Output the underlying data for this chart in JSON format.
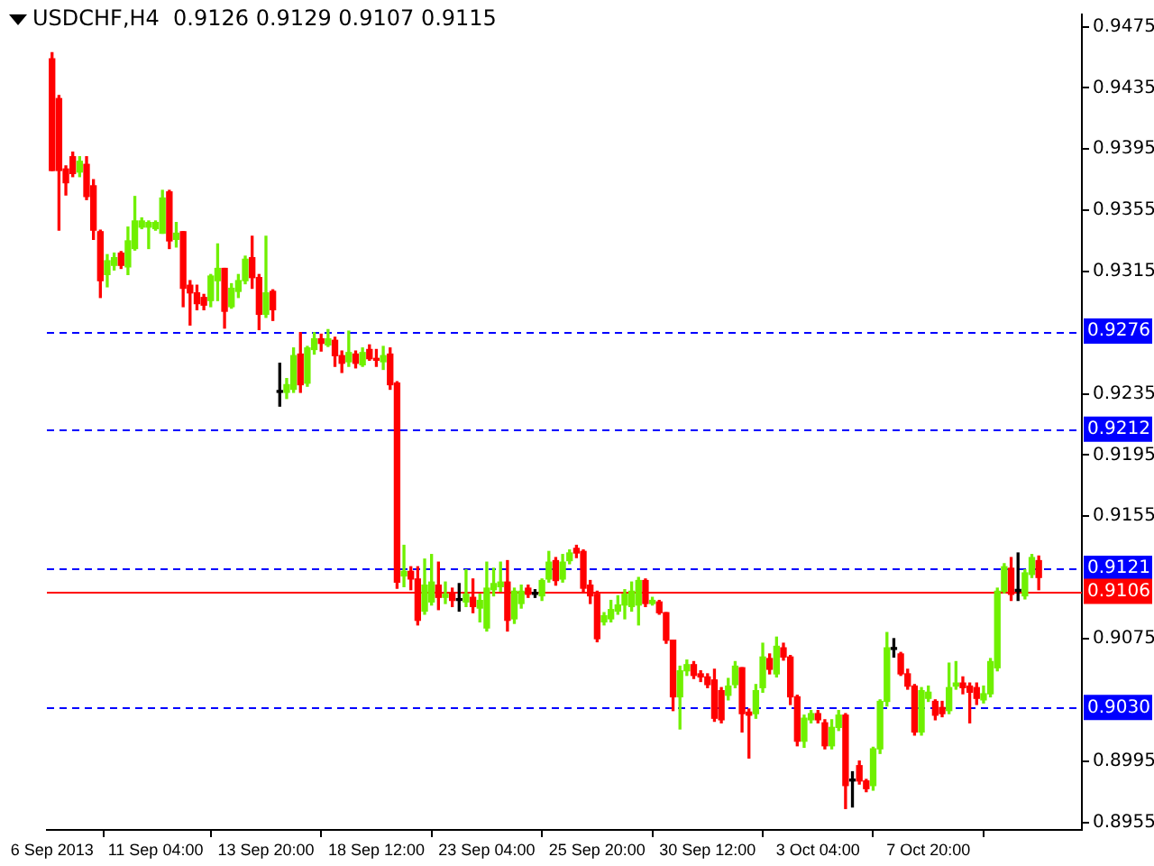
{
  "chart_data": {
    "type": "candlestick",
    "title": "USDCHF,H4  0.9126 0.9129 0.9107 0.9115",
    "categories": [
      "6 Sep 2013",
      null,
      null,
      null,
      null,
      null,
      null,
      null,
      null,
      null,
      null,
      null,
      null,
      null,
      null,
      "11 Sep 04:00",
      null,
      null,
      null,
      null,
      null,
      null,
      null,
      null,
      null,
      null,
      null,
      null,
      null,
      null,
      null,
      "13 Sep 20:00",
      null,
      null,
      null,
      null,
      null,
      null,
      null,
      null,
      null,
      null,
      null,
      null,
      null,
      null,
      null,
      "18 Sep 12:00",
      null,
      null,
      null,
      null,
      null,
      null,
      null,
      null,
      null,
      null,
      null,
      null,
      null,
      null,
      null,
      "23 Sep 04:00",
      null,
      null,
      null,
      null,
      null,
      null,
      null,
      null,
      null,
      null,
      null,
      null,
      null,
      null,
      null,
      "25 Sep 20:00",
      null,
      null,
      null,
      null,
      null,
      null,
      null,
      null,
      null,
      null,
      null,
      null,
      null,
      null,
      null,
      "30 Sep 12:00",
      null,
      null,
      null,
      null,
      null,
      null,
      null,
      null,
      null,
      null,
      null,
      null,
      null,
      null,
      null,
      "3 Oct 04:00",
      null,
      null,
      null,
      null,
      null,
      null,
      null,
      null,
      null,
      null,
      null,
      null,
      null,
      null,
      null,
      "7 Oct 20:00",
      null,
      null,
      null,
      null,
      null,
      null,
      null,
      null,
      null,
      null,
      null,
      null,
      null,
      null,
      null,
      null
    ],
    "ohlc": [
      [
        0.9454,
        0.9458,
        0.9381,
        0.9381
      ],
      [
        0.9428,
        0.943,
        0.9342,
        0.9381
      ],
      [
        0.9382,
        0.9384,
        0.9365,
        0.9373
      ],
      [
        0.939,
        0.9393,
        0.9377,
        0.9379
      ],
      [
        0.938,
        0.939,
        0.9377,
        0.9387
      ],
      [
        0.9385,
        0.939,
        0.9362,
        0.9364
      ],
      [
        0.9371,
        0.9375,
        0.9336,
        0.9342
      ],
      [
        0.9341,
        0.9342,
        0.9298,
        0.9309
      ],
      [
        0.9313,
        0.9326,
        0.9305,
        0.9322
      ],
      [
        0.9319,
        0.9327,
        0.9316,
        0.9324
      ],
      [
        0.9327,
        0.9328,
        0.9317,
        0.9319
      ],
      [
        0.9318,
        0.9344,
        0.9313,
        0.9335
      ],
      [
        0.933,
        0.9364,
        0.9329,
        0.9348
      ],
      [
        0.9344,
        0.935,
        0.9343,
        0.9348
      ],
      [
        0.9344,
        0.9348,
        0.933,
        0.9347
      ],
      [
        0.9343,
        0.9348,
        0.9342,
        0.9347
      ],
      [
        0.934,
        0.9368,
        0.934,
        0.9363
      ],
      [
        0.9367,
        0.9368,
        0.933,
        0.9335
      ],
      [
        0.9336,
        0.9347,
        0.9331,
        0.934
      ],
      [
        0.9341,
        0.9341,
        0.9292,
        0.9304
      ],
      [
        0.9306,
        0.9309,
        0.928,
        0.9301
      ],
      [
        0.9301,
        0.9306,
        0.929,
        0.9294
      ],
      [
        0.9298,
        0.93,
        0.929,
        0.9293
      ],
      [
        0.9296,
        0.9313,
        0.9292,
        0.9312
      ],
      [
        0.9309,
        0.9333,
        0.9296,
        0.9317
      ],
      [
        0.9317,
        0.9317,
        0.9278,
        0.9289
      ],
      [
        0.9292,
        0.9307,
        0.9291,
        0.9304
      ],
      [
        0.9302,
        0.9313,
        0.9298,
        0.9309
      ],
      [
        0.9309,
        0.9325,
        0.9307,
        0.9323
      ],
      [
        0.9324,
        0.9338,
        0.9304,
        0.9311
      ],
      [
        0.9311,
        0.9313,
        0.9277,
        0.9287
      ],
      [
        0.9287,
        0.9338,
        0.9285,
        0.9301
      ],
      [
        0.9302,
        0.9303,
        0.9283,
        0.929
      ],
      [
        0.9236,
        0.9255,
        0.9227,
        0.9236
      ],
      [
        0.9236,
        0.9245,
        0.9232,
        0.9241
      ],
      [
        0.9238,
        0.9265,
        0.9236,
        0.926
      ],
      [
        0.9261,
        0.9275,
        0.9236,
        0.9241
      ],
      [
        0.9242,
        0.9266,
        0.924,
        0.9265
      ],
      [
        0.9264,
        0.9275,
        0.9261,
        0.9271
      ],
      [
        0.9271,
        0.9274,
        0.9263,
        0.9268
      ],
      [
        0.9267,
        0.9277,
        0.9266,
        0.9271
      ],
      [
        0.927,
        0.9272,
        0.9253,
        0.926
      ],
      [
        0.926,
        0.9263,
        0.9249,
        0.9255
      ],
      [
        0.9256,
        0.9276,
        0.9253,
        0.9262
      ],
      [
        0.9261,
        0.9263,
        0.9252,
        0.9255
      ],
      [
        0.9254,
        0.9265,
        0.9253,
        0.9262
      ],
      [
        0.9264,
        0.9267,
        0.9257,
        0.9258
      ],
      [
        0.9258,
        0.9264,
        0.9253,
        0.9257
      ],
      [
        0.9256,
        0.9266,
        0.9251,
        0.926
      ],
      [
        0.9261,
        0.9265,
        0.9238,
        0.9241
      ],
      [
        0.9242,
        0.9243,
        0.9108,
        0.9112
      ],
      [
        0.9116,
        0.9136,
        0.9109,
        0.9119
      ],
      [
        0.9119,
        0.9122,
        0.9107,
        0.9114
      ],
      [
        0.9114,
        0.9122,
        0.9084,
        0.9087
      ],
      [
        0.9093,
        0.9127,
        0.9091,
        0.911
      ],
      [
        0.9099,
        0.913,
        0.9097,
        0.9112
      ],
      [
        0.911,
        0.9125,
        0.9094,
        0.9102
      ],
      [
        0.9102,
        0.9112,
        0.9098,
        0.9104
      ],
      [
        0.9105,
        0.9108,
        0.9096,
        0.91
      ],
      [
        0.91,
        0.9111,
        0.9093,
        0.91
      ],
      [
        0.9099,
        0.912,
        0.9096,
        0.9104
      ],
      [
        0.9102,
        0.9114,
        0.9092,
        0.9096
      ],
      [
        0.9095,
        0.9104,
        0.9086,
        0.91
      ],
      [
        0.9082,
        0.9125,
        0.908,
        0.9108
      ],
      [
        0.9107,
        0.9121,
        0.9103,
        0.9111
      ],
      [
        0.9109,
        0.9125,
        0.9106,
        0.9112
      ],
      [
        0.9112,
        0.9126,
        0.908,
        0.9087
      ],
      [
        0.9088,
        0.9108,
        0.9085,
        0.9106
      ],
      [
        0.9098,
        0.911,
        0.9095,
        0.9106
      ],
      [
        0.9108,
        0.911,
        0.9102,
        0.9104
      ],
      [
        0.9104,
        0.9107,
        0.9102,
        0.9104
      ],
      [
        0.9103,
        0.9114,
        0.91,
        0.9113
      ],
      [
        0.9114,
        0.9132,
        0.9112,
        0.9125
      ],
      [
        0.9126,
        0.9128,
        0.911,
        0.9113
      ],
      [
        0.9114,
        0.913,
        0.9112,
        0.9125
      ],
      [
        0.9126,
        0.9133,
        0.9124,
        0.9131
      ],
      [
        0.9134,
        0.9136,
        0.9128,
        0.9131
      ],
      [
        0.9132,
        0.9133,
        0.9105,
        0.9108
      ],
      [
        0.911,
        0.9113,
        0.9098,
        0.9103
      ],
      [
        0.9104,
        0.9106,
        0.9073,
        0.9075
      ],
      [
        0.9086,
        0.9092,
        0.9084,
        0.909
      ],
      [
        0.9088,
        0.91,
        0.9086,
        0.9094
      ],
      [
        0.9093,
        0.9103,
        0.9091,
        0.9097
      ],
      [
        0.9097,
        0.9107,
        0.9088,
        0.9104
      ],
      [
        0.9096,
        0.9112,
        0.9093,
        0.9106
      ],
      [
        0.9097,
        0.9115,
        0.9084,
        0.9113
      ],
      [
        0.9113,
        0.9114,
        0.9096,
        0.9098
      ],
      [
        0.9098,
        0.9102,
        0.9097,
        0.91
      ],
      [
        0.9099,
        0.91,
        0.9091,
        0.9092
      ],
      [
        0.9092,
        0.9092,
        0.9072,
        0.9074
      ],
      [
        0.9074,
        0.9074,
        0.9028,
        0.9037
      ],
      [
        0.9037,
        0.9057,
        0.9016,
        0.9054
      ],
      [
        0.9054,
        0.9061,
        0.9051,
        0.9058
      ],
      [
        0.9058,
        0.906,
        0.9049,
        0.9051
      ],
      [
        0.9052,
        0.9054,
        0.9047,
        0.905
      ],
      [
        0.905,
        0.9052,
        0.9043,
        0.9045
      ],
      [
        0.9048,
        0.9055,
        0.9021,
        0.9023
      ],
      [
        0.9041,
        0.9043,
        0.902,
        0.9022
      ],
      [
        0.9038,
        0.9049,
        0.9035,
        0.9044
      ],
      [
        0.9045,
        0.906,
        0.9043,
        0.9057
      ],
      [
        0.9056,
        0.9056,
        0.9014,
        0.9026
      ],
      [
        0.9027,
        0.9029,
        0.8997,
        0.9025
      ],
      [
        0.9026,
        0.9045,
        0.9023,
        0.9041
      ],
      [
        0.9043,
        0.9072,
        0.904,
        0.9063
      ],
      [
        0.9062,
        0.9065,
        0.9052,
        0.9055
      ],
      [
        0.9052,
        0.9076,
        0.905,
        0.907
      ],
      [
        0.9069,
        0.9072,
        0.9061,
        0.9063
      ],
      [
        0.9063,
        0.9064,
        0.9032,
        0.9037
      ],
      [
        0.9037,
        0.9038,
        0.9005,
        0.9008
      ],
      [
        0.9008,
        0.9025,
        0.9004,
        0.9023
      ],
      [
        0.9022,
        0.9028,
        0.902,
        0.9026
      ],
      [
        0.9026,
        0.9028,
        0.902,
        0.9022
      ],
      [
        0.902,
        0.9022,
        0.9003,
        0.9005
      ],
      [
        0.9005,
        0.9022,
        0.9003,
        0.9017
      ],
      [
        0.9017,
        0.9028,
        0.9015,
        0.9025
      ],
      [
        0.9025,
        0.9026,
        0.8964,
        0.8979
      ],
      [
        0.8982,
        0.8988,
        0.8965,
        0.8982
      ],
      [
        0.8992,
        0.8995,
        0.898,
        0.8982
      ],
      [
        0.8982,
        0.8983,
        0.8975,
        0.8977
      ],
      [
        0.8979,
        0.9004,
        0.8976,
        0.9003
      ],
      [
        0.9003,
        0.9035,
        0.9,
        0.9034
      ],
      [
        0.9034,
        0.9079,
        0.9031,
        0.9069
      ],
      [
        0.9068,
        0.9075,
        0.9063,
        0.9068
      ],
      [
        0.9065,
        0.9066,
        0.9051,
        0.9052
      ],
      [
        0.9052,
        0.9055,
        0.9042,
        0.9044
      ],
      [
        0.9044,
        0.9045,
        0.9012,
        0.9014
      ],
      [
        0.9014,
        0.9043,
        0.9012,
        0.9041
      ],
      [
        0.9036,
        0.9044,
        0.9034,
        0.904
      ],
      [
        0.9034,
        0.9035,
        0.9022,
        0.9025
      ],
      [
        0.903,
        0.9034,
        0.9024,
        0.9026
      ],
      [
        0.9028,
        0.9059,
        0.9026,
        0.9043
      ],
      [
        0.9044,
        0.906,
        0.9042,
        0.9046
      ],
      [
        0.9046,
        0.905,
        0.9039,
        0.9043
      ],
      [
        0.9044,
        0.9046,
        0.902,
        0.904
      ],
      [
        0.9043,
        0.9046,
        0.9032,
        0.9036
      ],
      [
        0.9035,
        0.9044,
        0.9033,
        0.9039
      ],
      [
        0.9039,
        0.9062,
        0.9037,
        0.906
      ],
      [
        0.9056,
        0.9108,
        0.9054,
        0.9106
      ],
      [
        0.9106,
        0.9124,
        0.9105,
        0.9122
      ],
      [
        0.9121,
        0.9128,
        0.91,
        0.9104
      ],
      [
        0.9106,
        0.9131,
        0.91,
        0.9106
      ],
      [
        0.9103,
        0.912,
        0.9101,
        0.9118
      ],
      [
        0.9117,
        0.913,
        0.9115,
        0.9128
      ],
      [
        0.9126,
        0.9129,
        0.9107,
        0.9115
      ]
    ],
    "colors": [
      "#ff0000",
      "#ff0000",
      "#ff0000",
      "#ff0000",
      "#70f000",
      "#ff0000",
      "#ff0000",
      "#ff0000",
      "#70f000",
      "#70f000",
      "#ff0000",
      "#70f000",
      "#70f000",
      "#70f000",
      "#70f000",
      "#70f000",
      "#70f000",
      "#ff0000",
      "#70f000",
      "#ff0000",
      "#ff0000",
      "#ff0000",
      "#ff0000",
      "#70f000",
      "#70f000",
      "#ff0000",
      "#70f000",
      "#70f000",
      "#70f000",
      "#ff0000",
      "#ff0000",
      "#70f000",
      "#ff0000",
      "#000000",
      "#70f000",
      "#70f000",
      "#ff0000",
      "#70f000",
      "#70f000",
      "#ff0000",
      "#70f000",
      "#ff0000",
      "#ff0000",
      "#70f000",
      "#ff0000",
      "#70f000",
      "#ff0000",
      "#ff0000",
      "#70f000",
      "#ff0000",
      "#ff0000",
      "#70f000",
      "#ff0000",
      "#ff0000",
      "#70f000",
      "#70f000",
      "#ff0000",
      "#70f000",
      "#ff0000",
      "#000000",
      "#70f000",
      "#ff0000",
      "#70f000",
      "#70f000",
      "#70f000",
      "#70f000",
      "#ff0000",
      "#70f000",
      "#70f000",
      "#ff0000",
      "#000000",
      "#70f000",
      "#70f000",
      "#ff0000",
      "#70f000",
      "#70f000",
      "#ff0000",
      "#ff0000",
      "#ff0000",
      "#ff0000",
      "#70f000",
      "#70f000",
      "#70f000",
      "#70f000",
      "#70f000",
      "#70f000",
      "#ff0000",
      "#70f000",
      "#ff0000",
      "#ff0000",
      "#ff0000",
      "#70f000",
      "#70f000",
      "#ff0000",
      "#ff0000",
      "#ff0000",
      "#ff0000",
      "#ff0000",
      "#70f000",
      "#70f000",
      "#ff0000",
      "#ff0000",
      "#70f000",
      "#70f000",
      "#ff0000",
      "#70f000",
      "#ff0000",
      "#ff0000",
      "#ff0000",
      "#70f000",
      "#70f000",
      "#ff0000",
      "#ff0000",
      "#70f000",
      "#70f000",
      "#ff0000",
      "#000000",
      "#ff0000",
      "#ff0000",
      "#70f000",
      "#70f000",
      "#70f000",
      "#000000",
      "#ff0000",
      "#ff0000",
      "#ff0000",
      "#70f000",
      "#70f000",
      "#ff0000",
      "#ff0000",
      "#70f000",
      "#70f000",
      "#ff0000",
      "#ff0000",
      "#ff0000",
      "#70f000",
      "#70f000",
      "#70f000",
      "#70f000",
      "#ff0000",
      "#000000",
      "#70f000",
      "#70f000",
      "#ff0000"
    ],
    "ylim": [
      0.895,
      0.9483
    ],
    "yticks": [
      0.9475,
      0.9435,
      0.9395,
      0.9355,
      0.9315,
      0.9235,
      0.9195,
      0.9155,
      0.9075,
      0.8995,
      0.8955
    ],
    "ref_lines": [
      {
        "axis": "y",
        "value": 0.9276,
        "label": "0.9276",
        "color": "#0000ff",
        "line_style": "dashed"
      },
      {
        "axis": "y",
        "value": 0.9212,
        "label": "0.9212",
        "color": "#0000ff",
        "line_style": "dashed"
      },
      {
        "axis": "y",
        "value": 0.9121,
        "label": "0.9121",
        "color": "#0000ff",
        "line_style": "dashed"
      },
      {
        "axis": "y",
        "value": 0.9106,
        "label": "0.9106",
        "color": "#ff0000",
        "line_style": "solid"
      },
      {
        "axis": "y",
        "value": 0.903,
        "label": "0.9030",
        "color": "#0000ff",
        "line_style": "dashed"
      }
    ]
  }
}
